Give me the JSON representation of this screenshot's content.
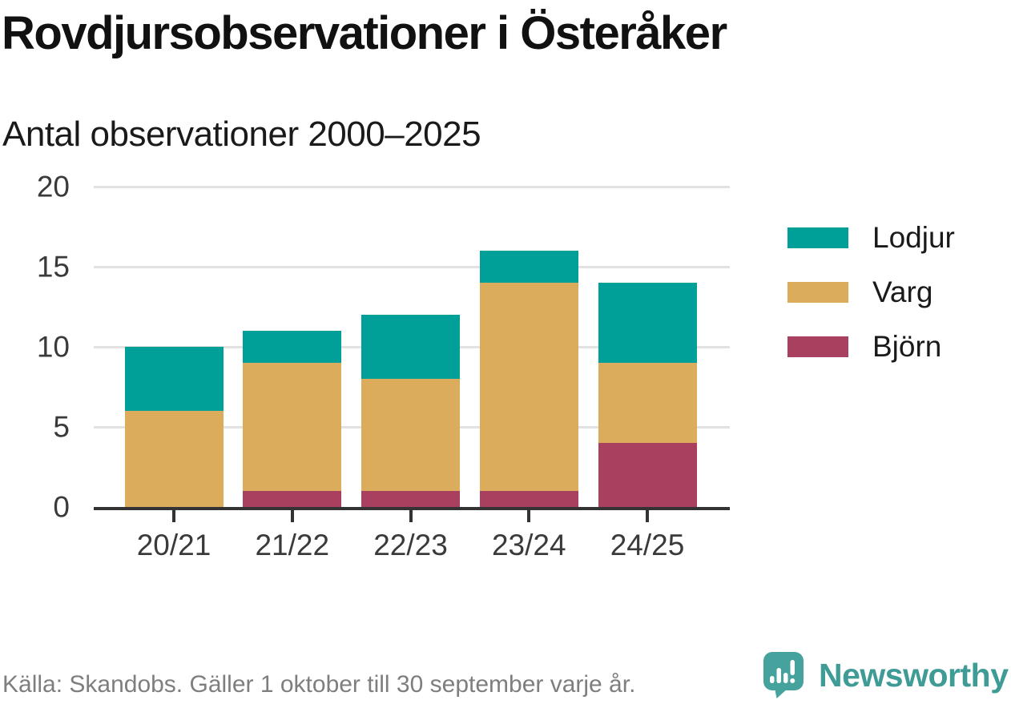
{
  "title": "Rovdjursobservationer i Österåker",
  "subtitle": "Antal observationer 2000–2025",
  "footer": {
    "source": "Källa: Skandobs. Gäller 1 oktober till 30 september varje år.",
    "brand": "Newsworthy"
  },
  "colors": {
    "lodjur": "#00a099",
    "varg": "#daac5c",
    "bjorn": "#a9405f",
    "axis": "#333333",
    "gridline": "#e2e2e2",
    "source_text": "#7e7e7e",
    "brand_teal": "#3f9b96",
    "icon_teal": "#46a29d"
  },
  "chart_data": {
    "type": "bar",
    "variant": "stacked",
    "title": "Rovdjursobservationer i Österåker",
    "subtitle": "Antal observationer 2000–2025",
    "categories": [
      "20/21",
      "21/22",
      "22/23",
      "23/24",
      "24/25"
    ],
    "series": [
      {
        "name": "Lodjur",
        "color": "#00a099",
        "values": [
          4,
          2,
          4,
          2,
          5
        ]
      },
      {
        "name": "Varg",
        "color": "#daac5c",
        "values": [
          6,
          8,
          7,
          13,
          5
        ]
      },
      {
        "name": "Björn",
        "color": "#a9405f",
        "values": [
          0,
          1,
          1,
          1,
          4
        ]
      }
    ],
    "totals": [
      10,
      11,
      12,
      16,
      14
    ],
    "xlabel": "",
    "ylabel": "",
    "ylim": [
      0,
      20
    ],
    "y_ticks": [
      0,
      5,
      10,
      15,
      20
    ],
    "grid": "horizontal",
    "legend_position": "right",
    "legend_order": [
      "Lodjur",
      "Varg",
      "Björn"
    ]
  }
}
